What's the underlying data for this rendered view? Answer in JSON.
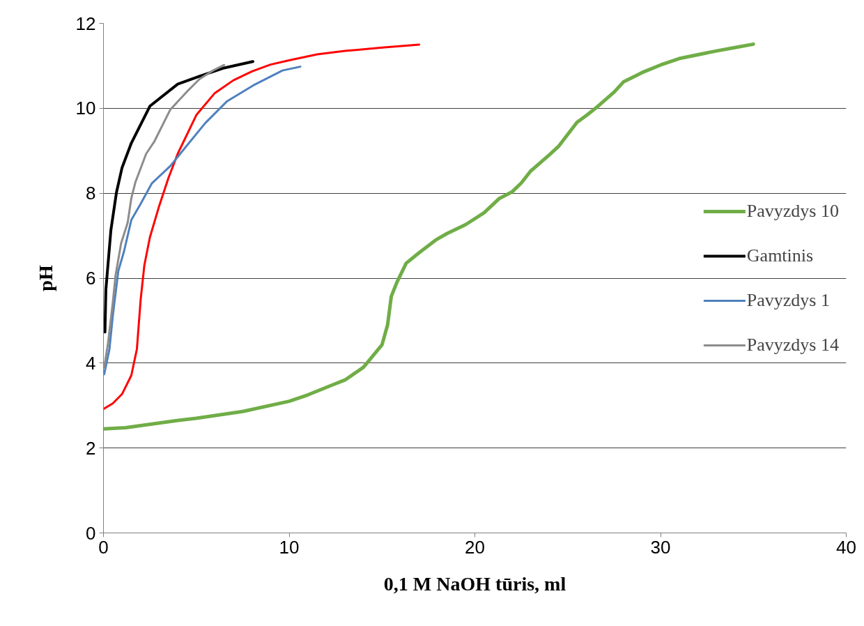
{
  "chart_data": {
    "type": "line",
    "xlabel": "0,1 M NaOH tūris, ml",
    "ylabel": "pH",
    "xlim": [
      0,
      40
    ],
    "ylim": [
      0,
      12
    ],
    "xticks": [
      0,
      10,
      20,
      30,
      40
    ],
    "yticks": [
      0,
      2,
      4,
      6,
      8,
      10,
      12
    ],
    "grid": "y",
    "legend": "right",
    "marker": "none",
    "line_style": "solid",
    "series": [
      {
        "name": "Pavyzdys 10",
        "color": "#70ad47",
        "x": [
          0,
          1.2,
          3.83,
          5,
          7.5,
          10,
          11,
          12.3,
          13,
          14,
          15,
          15.3,
          15.5,
          15.8,
          16.3,
          17,
          17.9,
          18.5,
          19.5,
          20.5,
          21.3,
          22,
          22.5,
          23,
          24,
          24.5,
          25.5,
          26,
          26.5,
          27.5,
          28,
          29,
          30,
          31,
          33,
          34,
          35
        ],
        "values": [
          2.45,
          2.48,
          2.64,
          2.7,
          2.86,
          3.1,
          3.25,
          3.48,
          3.6,
          3.9,
          4.43,
          4.9,
          5.57,
          5.9,
          6.35,
          6.6,
          6.9,
          7.05,
          7.26,
          7.54,
          7.87,
          8.03,
          8.24,
          8.52,
          8.9,
          9.1,
          9.67,
          9.83,
          10.0,
          10.38,
          10.62,
          10.84,
          11.02,
          11.17,
          11.35,
          11.43,
          11.51
        ]
      },
      {
        "color": "#ff0000",
        "x": [
          0,
          0.5,
          1,
          1.5,
          1.8,
          2,
          2.2,
          2.5,
          3,
          3.5,
          4,
          5,
          6,
          7,
          8,
          9,
          10,
          11.5,
          13,
          15,
          17
        ],
        "values": [
          2.92,
          3.05,
          3.27,
          3.71,
          4.33,
          5.48,
          6.3,
          6.96,
          7.7,
          8.36,
          8.93,
          9.84,
          10.36,
          10.66,
          10.87,
          11.03,
          11.13,
          11.27,
          11.35,
          11.43,
          11.5
        ]
      },
      {
        "name": "Gamtinis",
        "color": "#000000",
        "x": [
          0.08,
          0.13,
          0.4,
          0.7,
          1.0,
          1.5,
          2.5,
          4.0,
          5.2,
          6.5,
          8.05
        ],
        "values": [
          4.73,
          5.73,
          7.13,
          8.02,
          8.6,
          9.18,
          10.05,
          10.57,
          10.76,
          10.95,
          11.1
        ]
      },
      {
        "name": "Pavyzdys 1",
        "color": "#4f81bd",
        "x": [
          0.04,
          0.32,
          0.5,
          0.8,
          1.1,
          1.5,
          2.0,
          2.6,
          3.6,
          4.47,
          5.48,
          6.64,
          8.07,
          9.64,
          10.6
        ],
        "values": [
          3.74,
          4.32,
          5.1,
          6.17,
          6.62,
          7.37,
          7.75,
          8.23,
          8.64,
          9.11,
          9.65,
          10.16,
          10.54,
          10.89,
          10.98
        ]
      },
      {
        "name": "Pavyzdys 14",
        "color": "#8c8c8c",
        "x": [
          0.04,
          0.25,
          0.5,
          0.65,
          0.95,
          1.3,
          1.5,
          1.72,
          2.3,
          2.73,
          3.6,
          4.47,
          5.18,
          5.9,
          6.5
        ],
        "values": [
          3.9,
          4.48,
          5.42,
          6.06,
          6.82,
          7.3,
          7.88,
          8.26,
          8.93,
          9.21,
          9.97,
          10.38,
          10.69,
          10.89,
          11.02
        ]
      }
    ]
  }
}
